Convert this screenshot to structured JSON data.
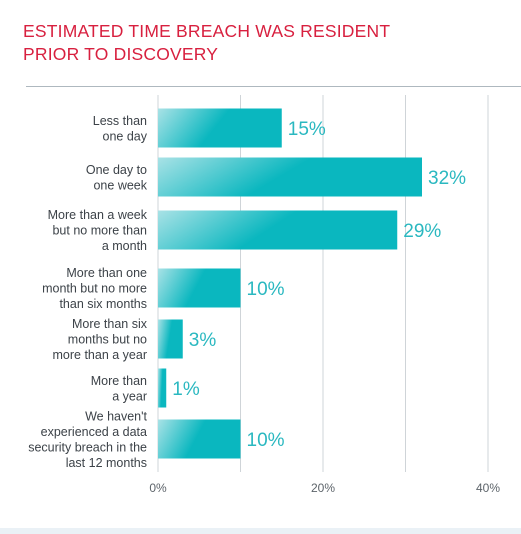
{
  "title_lines": [
    "ESTIMATED TIME BREACH WAS RESIDENT",
    "PRIOR TO DISCOVERY"
  ],
  "colors": {
    "title": "#d8203f",
    "bar_light": "#a9e2e6",
    "bar_dark": "#0ab7bf",
    "value_label": "#2ab8c0",
    "category_label": "#3c4248",
    "gridline": "#cfd4d8",
    "tick_label": "#5d646a"
  },
  "chart_data": {
    "type": "bar",
    "orientation": "horizontal",
    "title": "ESTIMATED TIME BREACH WAS RESIDENT PRIOR TO DISCOVERY",
    "categories": [
      [
        "Less than",
        "one day"
      ],
      [
        "One day to",
        "one week"
      ],
      [
        "More than a week",
        "but no more than",
        "a month"
      ],
      [
        "More than one",
        "month but no more",
        "than six months"
      ],
      [
        "More than six",
        "months but no",
        "more than a year"
      ],
      [
        "More than",
        "a year"
      ],
      [
        "We haven't",
        "experienced a data",
        "security breach in the",
        "last 12 months"
      ]
    ],
    "values": [
      15,
      32,
      29,
      10,
      3,
      1,
      10
    ],
    "value_labels": [
      "15%",
      "32%",
      "29%",
      "10%",
      "3%",
      "1%",
      "10%"
    ],
    "xlim": [
      0,
      40
    ],
    "x_ticks": [
      0,
      20,
      40
    ],
    "x_tick_labels": [
      "0%",
      "20%",
      "40%"
    ],
    "grid": true
  }
}
